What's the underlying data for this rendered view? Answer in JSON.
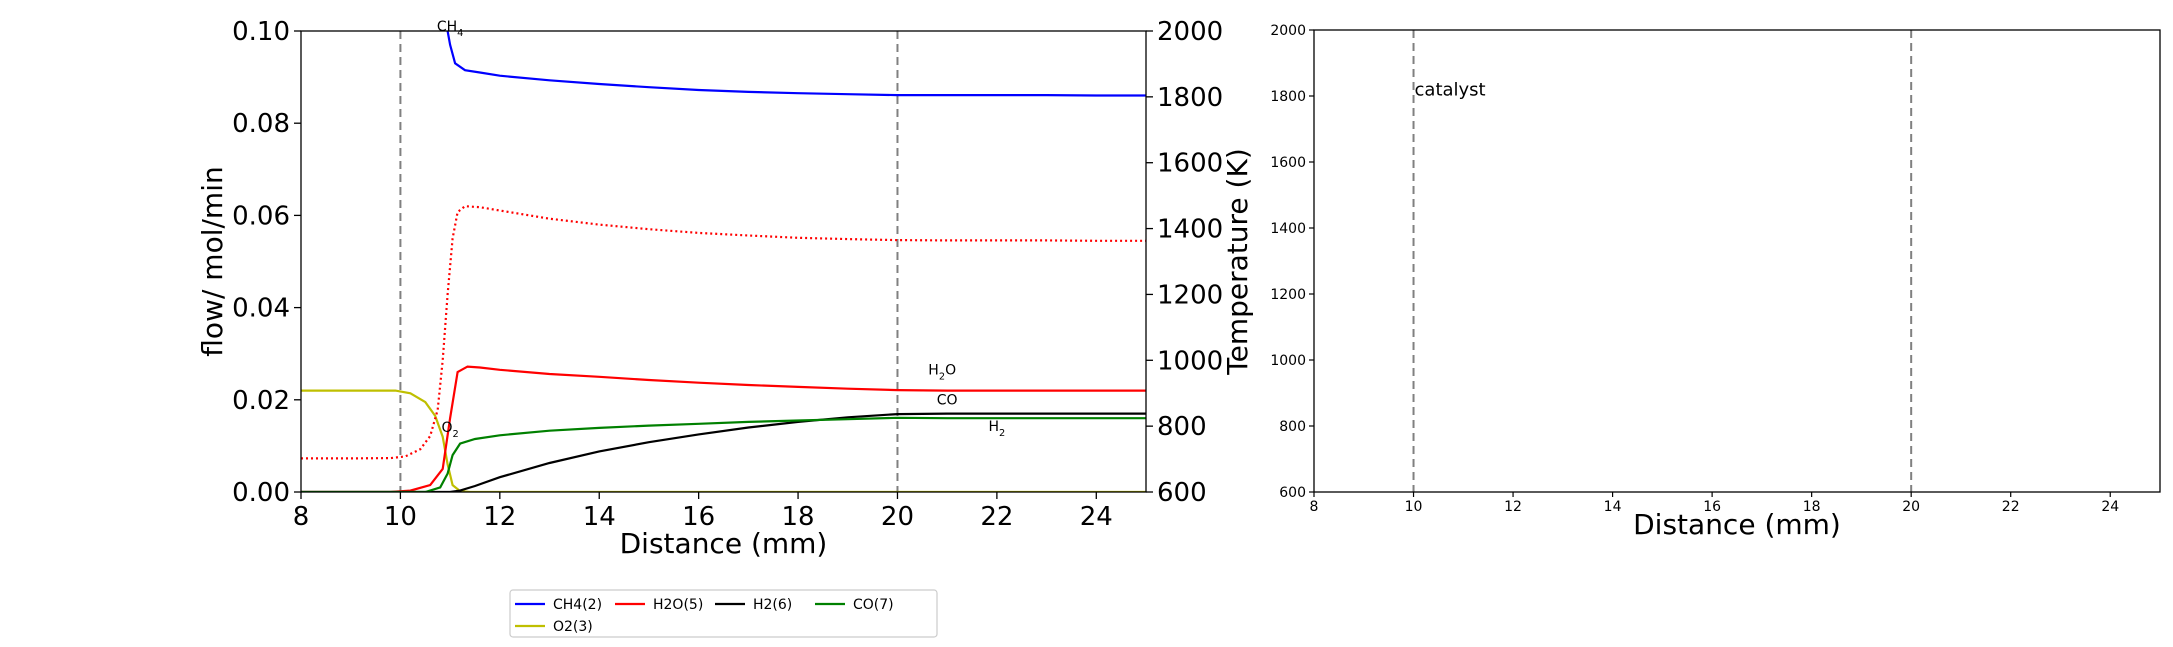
{
  "chart_data": [
    {
      "type": "line",
      "xlabel": "Distance (mm)",
      "ylabel": "flow/ mol/min",
      "y2label": "Temperature (K)",
      "xlim": [
        8,
        25
      ],
      "ylim": [
        0,
        0.1
      ],
      "y2lim": [
        600,
        2000
      ],
      "xticks": [
        "8",
        "10",
        "12",
        "14",
        "16",
        "18",
        "20",
        "22",
        "24"
      ],
      "yticks": [
        "0.00",
        "0.02",
        "0.04",
        "0.06",
        "0.08",
        "0.10"
      ],
      "y2ticks": [
        "600",
        "800",
        "1000",
        "1200",
        "1400",
        "1600",
        "1800",
        "2000"
      ],
      "vlines": [
        10,
        20
      ],
      "grid": false,
      "series": [
        {
          "name": "CH4(2)",
          "color": "#0000ff",
          "axis": "left",
          "points": [
            [
              10.95,
              0.1
            ],
            [
              11.0,
              0.097
            ],
            [
              11.1,
              0.093
            ],
            [
              11.3,
              0.0915
            ],
            [
              11.6,
              0.091
            ],
            [
              12,
              0.0903
            ],
            [
              13,
              0.0893
            ],
            [
              14,
              0.0885
            ],
            [
              15,
              0.0878
            ],
            [
              16,
              0.0872
            ],
            [
              17,
              0.0868
            ],
            [
              18,
              0.0865
            ],
            [
              19,
              0.0863
            ],
            [
              20,
              0.0861
            ],
            [
              21,
              0.0861
            ],
            [
              22,
              0.0861
            ],
            [
              23,
              0.0861
            ],
            [
              24,
              0.086
            ],
            [
              25,
              0.086
            ]
          ]
        },
        {
          "name": "O2(3)",
          "color": "#bfbf00",
          "axis": "left",
          "points": [
            [
              8,
              0.022
            ],
            [
              9,
              0.022
            ],
            [
              9.5,
              0.022
            ],
            [
              9.9,
              0.022
            ],
            [
              10.2,
              0.0214
            ],
            [
              10.5,
              0.0195
            ],
            [
              10.7,
              0.0165
            ],
            [
              10.85,
              0.012
            ],
            [
              10.95,
              0.006
            ],
            [
              11.05,
              0.0015
            ],
            [
              11.2,
              0.0002
            ],
            [
              11.4,
              0
            ],
            [
              12,
              0
            ],
            [
              16,
              0
            ],
            [
              20,
              0
            ],
            [
              25,
              0
            ]
          ]
        },
        {
          "name": "H2O(5)",
          "color": "#ff0000",
          "axis": "left",
          "points": [
            [
              8,
              0
            ],
            [
              9.8,
              0
            ],
            [
              10.2,
              0.0003
            ],
            [
              10.6,
              0.0015
            ],
            [
              10.85,
              0.005
            ],
            [
              11.0,
              0.016
            ],
            [
              11.15,
              0.026
            ],
            [
              11.35,
              0.0272
            ],
            [
              11.6,
              0.027
            ],
            [
              12,
              0.0265
            ],
            [
              13,
              0.0256
            ],
            [
              14,
              0.025
            ],
            [
              15,
              0.0243
            ],
            [
              16,
              0.0237
            ],
            [
              17,
              0.0232
            ],
            [
              18,
              0.0228
            ],
            [
              19,
              0.0224
            ],
            [
              20,
              0.0221
            ],
            [
              21,
              0.022
            ],
            [
              22,
              0.022
            ],
            [
              23,
              0.022
            ],
            [
              24,
              0.022
            ],
            [
              25,
              0.022
            ]
          ]
        },
        {
          "name": "H2(6)",
          "color": "#000000",
          "axis": "left",
          "points": [
            [
              8,
              0
            ],
            [
              11,
              0
            ],
            [
              11.2,
              0.0003
            ],
            [
              11.5,
              0.0013
            ],
            [
              12,
              0.0032
            ],
            [
              13,
              0.0063
            ],
            [
              14,
              0.0088
            ],
            [
              15,
              0.0108
            ],
            [
              16,
              0.0125
            ],
            [
              17,
              0.014
            ],
            [
              18,
              0.0152
            ],
            [
              19,
              0.0162
            ],
            [
              20,
              0.0169
            ],
            [
              21,
              0.017
            ],
            [
              22,
              0.017
            ],
            [
              23,
              0.017
            ],
            [
              24,
              0.017
            ],
            [
              25,
              0.017
            ]
          ]
        },
        {
          "name": "CO(7)",
          "color": "#008000",
          "axis": "left",
          "points": [
            [
              8,
              0
            ],
            [
              10.5,
              0
            ],
            [
              10.8,
              0.001
            ],
            [
              10.95,
              0.004
            ],
            [
              11.05,
              0.008
            ],
            [
              11.2,
              0.0105
            ],
            [
              11.5,
              0.0115
            ],
            [
              12,
              0.0123
            ],
            [
              13,
              0.0133
            ],
            [
              14,
              0.0139
            ],
            [
              15,
              0.0144
            ],
            [
              16,
              0.0148
            ],
            [
              17,
              0.0152
            ],
            [
              18,
              0.0155
            ],
            [
              19,
              0.0158
            ],
            [
              20,
              0.0161
            ],
            [
              21,
              0.016
            ],
            [
              22,
              0.016
            ],
            [
              23,
              0.016
            ],
            [
              24,
              0.016
            ],
            [
              25,
              0.016
            ]
          ]
        },
        {
          "color": "#ff0000",
          "dashed": true,
          "axis": "right",
          "points": [
            [
              8,
              702
            ],
            [
              9,
              702
            ],
            [
              9.8,
              703
            ],
            [
              10.1,
              708
            ],
            [
              10.4,
              730
            ],
            [
              10.6,
              770
            ],
            [
              10.75,
              850
            ],
            [
              10.85,
              1000
            ],
            [
              10.95,
              1200
            ],
            [
              11.05,
              1370
            ],
            [
              11.15,
              1450
            ],
            [
              11.3,
              1468
            ],
            [
              11.6,
              1465
            ],
            [
              12,
              1455
            ],
            [
              13,
              1430
            ],
            [
              14,
              1412
            ],
            [
              15,
              1398
            ],
            [
              16,
              1387
            ],
            [
              17,
              1379
            ],
            [
              18,
              1372
            ],
            [
              19,
              1368
            ],
            [
              20,
              1365
            ],
            [
              21,
              1364
            ],
            [
              22,
              1364
            ],
            [
              23,
              1364
            ],
            [
              24,
              1363
            ],
            [
              25,
              1363
            ]
          ]
        }
      ],
      "annotations": [
        {
          "base": "CH",
          "sub": "4",
          "x": 11.0,
          "y": 0.1,
          "color": "#0000ff",
          "axis": "left"
        },
        {
          "base": "H",
          "sub": "2",
          "tail": "O",
          "x": 20.9,
          "y": 0.0255,
          "color": "#ff0000",
          "axis": "left"
        },
        {
          "base": "CO",
          "x": 21.0,
          "y": 0.019,
          "color": "#008000",
          "axis": "left"
        },
        {
          "base": "H",
          "sub": "2",
          "x": 22.0,
          "y": 0.0132,
          "color": "#000000",
          "axis": "left"
        },
        {
          "base": "O",
          "sub": "2",
          "x": 11.0,
          "y": 0.013,
          "color": "#bfbf00",
          "axis": "left"
        }
      ]
    },
    {
      "type": "line",
      "xlabel": "Distance (mm)",
      "xlim": [
        8,
        25
      ],
      "ylim": [
        600,
        2000
      ],
      "xticks": [
        "8",
        "10",
        "12",
        "14",
        "16",
        "18",
        "20",
        "22",
        "24"
      ],
      "yticks": [
        "600",
        "800",
        "1000",
        "1200",
        "1400",
        "1600",
        "1800",
        "2000"
      ],
      "vlines": [
        10,
        20
      ],
      "grid": false,
      "series": [],
      "annotations": [
        {
          "base": "catalyst",
          "x": 10.0,
          "y": 1820,
          "color": "#000000"
        }
      ]
    }
  ],
  "legend": {
    "placement": "bottom-left",
    "entries": [
      {
        "label": "CH4(2)",
        "color": "#0000ff"
      },
      {
        "label": "H2O(5)",
        "color": "#ff0000"
      },
      {
        "label": "H2(6)",
        "color": "#000000"
      },
      {
        "label": "CO(7)",
        "color": "#008000"
      },
      {
        "label": "O2(3)",
        "color": "#bfbf00"
      }
    ]
  }
}
